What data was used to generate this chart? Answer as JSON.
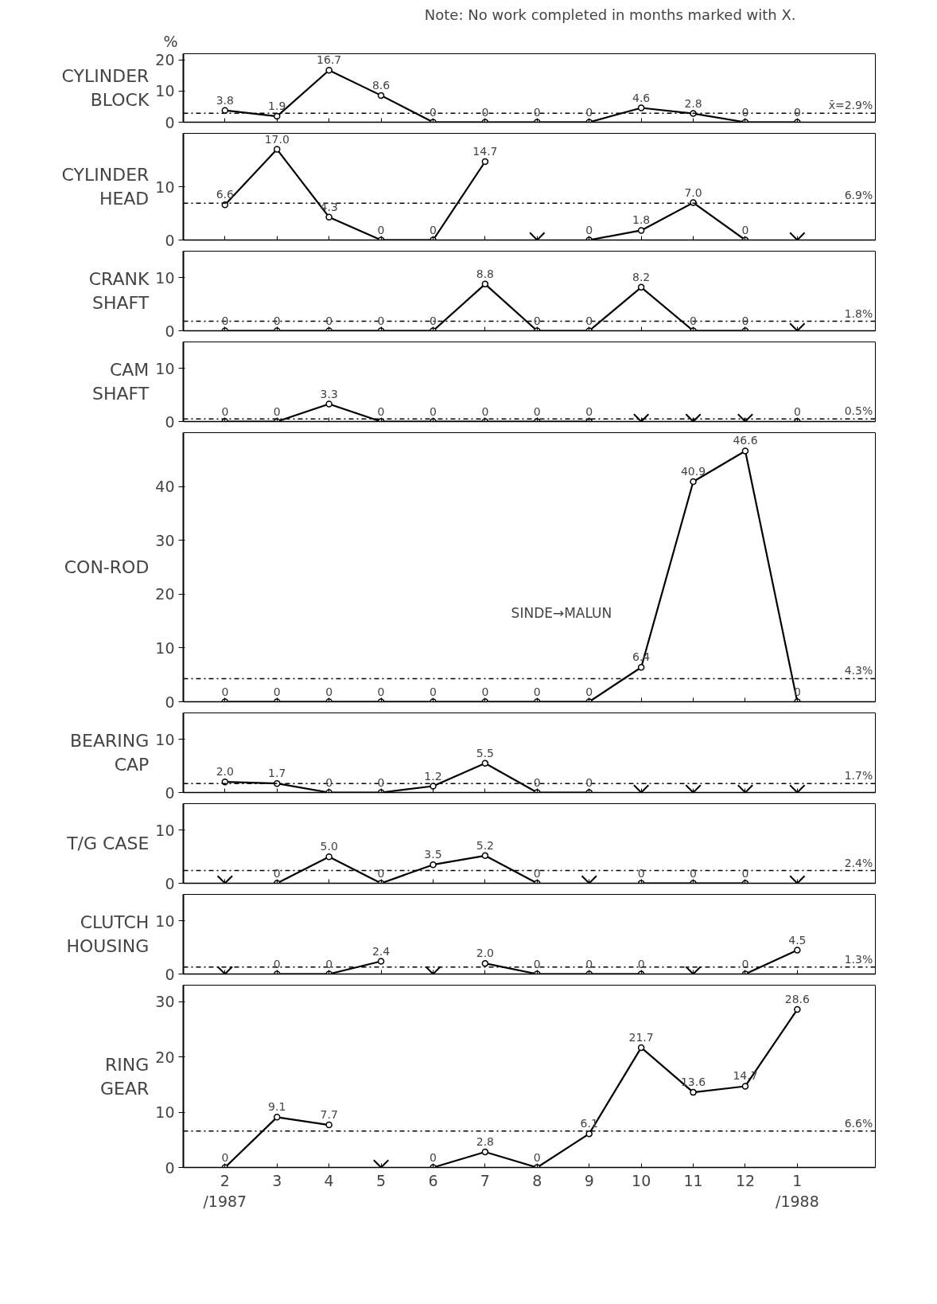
{
  "chart_data": [
    {
      "type": "line",
      "ylabel": "CYLINDER BLOCK",
      "categories": [
        "2",
        "3",
        "4",
        "5",
        "6",
        "7",
        "8",
        "9",
        "10",
        "11",
        "12",
        "1"
      ],
      "ylim": [
        0,
        22
      ],
      "yticks": [
        0,
        10,
        20
      ],
      "tick_labels": "y",
      "annotations": [
        "%",
        "Note: No work completed in months marked with X."
      ],
      "ref_lines": [
        {
          "axis": "y",
          "value": 2.9,
          "label": "x̄=2.9%",
          "line_style": "dashdot"
        }
      ],
      "series": [
        {
          "color": "#000000",
          "marker": "circle",
          "values": [
            3.8,
            1.9,
            16.7,
            8.6,
            0,
            0,
            0,
            0,
            4.6,
            2.8,
            0,
            0
          ],
          "value_labels": [
            "3.8",
            "1.9",
            "16.7",
            "8.6",
            "0",
            "0",
            "0",
            "0",
            "4.6",
            "2.8",
            "0",
            "0"
          ]
        }
      ]
    },
    {
      "type": "line",
      "ylabel": "CYLINDER HEAD",
      "categories": [
        "2",
        "3",
        "4",
        "5",
        "6",
        "7",
        "8",
        "9",
        "10",
        "11",
        "12",
        "1"
      ],
      "ylim": [
        0,
        20
      ],
      "yticks": [
        0,
        10
      ],
      "tick_labels": "y",
      "ref_lines": [
        {
          "axis": "y",
          "value": 6.9,
          "label": "6.9%",
          "line_style": "dashdot"
        }
      ],
      "series": [
        {
          "color": "#000000",
          "marker": "circle",
          "values": [
            6.6,
            17.0,
            4.3,
            0,
            0,
            14.7,
            null,
            0,
            1.8,
            7.0,
            0,
            null
          ],
          "value_labels": [
            "6.6",
            "17.0",
            "4.3",
            "0",
            "0",
            "14.7",
            null,
            "0",
            "1.8",
            "7.0",
            "0",
            null
          ]
        },
        {
          "type": "scatter",
          "color": "#000000",
          "marker": "cross",
          "values": [
            null,
            null,
            null,
            null,
            null,
            null,
            0,
            null,
            null,
            null,
            null,
            0
          ]
        }
      ]
    },
    {
      "type": "line",
      "ylabel": "CRANK SHAFT",
      "categories": [
        "2",
        "3",
        "4",
        "5",
        "6",
        "7",
        "8",
        "9",
        "10",
        "11",
        "12",
        "1"
      ],
      "ylim": [
        0,
        15
      ],
      "yticks": [
        0,
        10
      ],
      "tick_labels": "y",
      "ref_lines": [
        {
          "axis": "y",
          "value": 1.8,
          "label": "1.8%",
          "line_style": "dashdot"
        }
      ],
      "series": [
        {
          "color": "#000000",
          "marker": "circle",
          "values": [
            0,
            0,
            0,
            0,
            0,
            8.8,
            0,
            0,
            8.2,
            0,
            0,
            null
          ],
          "value_labels": [
            "0",
            "0",
            "0",
            "0",
            "0",
            "8.8",
            "0",
            "0",
            "8.2",
            "0",
            "0",
            null
          ]
        },
        {
          "type": "scatter",
          "color": "#000000",
          "marker": "cross",
          "values": [
            null,
            null,
            null,
            null,
            null,
            null,
            null,
            null,
            null,
            null,
            null,
            0
          ]
        }
      ]
    },
    {
      "type": "line",
      "ylabel": "CAM SHAFT",
      "categories": [
        "2",
        "3",
        "4",
        "5",
        "6",
        "7",
        "8",
        "9",
        "10",
        "11",
        "12",
        "1"
      ],
      "ylim": [
        0,
        15
      ],
      "yticks": [
        0,
        10
      ],
      "tick_labels": "y",
      "ref_lines": [
        {
          "axis": "y",
          "value": 0.5,
          "label": "0.5%",
          "line_style": "dashdot"
        }
      ],
      "series": [
        {
          "color": "#000000",
          "marker": "circle",
          "values": [
            0,
            0,
            3.3,
            0,
            0,
            0,
            0,
            0,
            null,
            null,
            null,
            0
          ],
          "value_labels": [
            "0",
            "0",
            "3.3",
            "0",
            "0",
            "0",
            "0",
            "0",
            null,
            null,
            null,
            "0"
          ]
        },
        {
          "type": "scatter",
          "color": "#000000",
          "marker": "cross",
          "values": [
            null,
            null,
            null,
            null,
            null,
            null,
            null,
            null,
            0,
            0,
            0,
            null
          ]
        }
      ]
    },
    {
      "type": "line",
      "ylabel": "CON-ROD",
      "categories": [
        "2",
        "3",
        "4",
        "5",
        "6",
        "7",
        "8",
        "9",
        "10",
        "11",
        "12",
        "1"
      ],
      "ylim": [
        0,
        50
      ],
      "yticks": [
        0,
        10,
        20,
        30,
        40
      ],
      "tick_labels": "y",
      "annotations": [
        "SINDE→MALUN"
      ],
      "ref_lines": [
        {
          "axis": "y",
          "value": 4.3,
          "label": "4.3%",
          "line_style": "dashdot"
        }
      ],
      "series": [
        {
          "color": "#000000",
          "marker": "circle",
          "values": [
            0,
            0,
            0,
            0,
            0,
            0,
            0,
            0,
            6.4,
            40.9,
            46.6,
            0
          ],
          "value_labels": [
            "0",
            "0",
            "0",
            "0",
            "0",
            "0",
            "0",
            "0",
            "6.4",
            "40.9",
            "46.6",
            "0"
          ]
        }
      ]
    },
    {
      "type": "line",
      "ylabel": "BEARING CAP",
      "categories": [
        "2",
        "3",
        "4",
        "5",
        "6",
        "7",
        "8",
        "9",
        "10",
        "11",
        "12",
        "1"
      ],
      "ylim": [
        0,
        15
      ],
      "yticks": [
        0,
        10
      ],
      "tick_labels": "y",
      "ref_lines": [
        {
          "axis": "y",
          "value": 1.7,
          "label": "1.7%",
          "line_style": "dashdot"
        }
      ],
      "series": [
        {
          "color": "#000000",
          "marker": "circle",
          "values": [
            2.0,
            1.7,
            0,
            0,
            1.2,
            5.5,
            0,
            0,
            null,
            null,
            null,
            null
          ],
          "value_labels": [
            "2.0",
            "1.7",
            "0",
            "0",
            "1.2",
            "5.5",
            "0",
            "0",
            null,
            null,
            null,
            null
          ]
        },
        {
          "type": "scatter",
          "color": "#000000",
          "marker": "cross",
          "values": [
            null,
            null,
            null,
            null,
            null,
            null,
            null,
            null,
            0,
            0,
            0,
            0
          ]
        }
      ]
    },
    {
      "type": "line",
      "ylabel": "T/G CASE",
      "categories": [
        "2",
        "3",
        "4",
        "5",
        "6",
        "7",
        "8",
        "9",
        "10",
        "11",
        "12",
        "1"
      ],
      "ylim": [
        0,
        15
      ],
      "yticks": [
        0,
        10
      ],
      "tick_labels": "y",
      "ref_lines": [
        {
          "axis": "y",
          "value": 2.4,
          "label": "2.4%",
          "line_style": "dashdot"
        }
      ],
      "series": [
        {
          "color": "#000000",
          "marker": "circle",
          "values": [
            null,
            0,
            5.0,
            0,
            3.5,
            5.2,
            0,
            null,
            0,
            0,
            0,
            null
          ],
          "value_labels": [
            null,
            "0",
            "5.0",
            "0",
            "3.5",
            "5.2",
            "0",
            null,
            "0",
            "0",
            "0",
            null
          ]
        },
        {
          "type": "scatter",
          "color": "#000000",
          "marker": "cross",
          "values": [
            0,
            null,
            null,
            null,
            null,
            null,
            null,
            0,
            null,
            null,
            null,
            0
          ]
        }
      ]
    },
    {
      "type": "line",
      "ylabel": "CLUTCH HOUSING",
      "categories": [
        "2",
        "3",
        "4",
        "5",
        "6",
        "7",
        "8",
        "9",
        "10",
        "11",
        "12",
        "1"
      ],
      "ylim": [
        0,
        15
      ],
      "yticks": [
        0,
        10
      ],
      "tick_labels": "y",
      "ref_lines": [
        {
          "axis": "y",
          "value": 1.3,
          "label": "1.3%",
          "line_style": "dashdot"
        }
      ],
      "series": [
        {
          "color": "#000000",
          "marker": "circle",
          "values": [
            null,
            0,
            0,
            2.4,
            null,
            2.0,
            0,
            0,
            0,
            null,
            0,
            4.5
          ],
          "value_labels": [
            null,
            "0",
            "0",
            "2.4",
            null,
            "2.0",
            "0",
            "0",
            "0",
            null,
            "0",
            "4.5"
          ]
        },
        {
          "type": "scatter",
          "color": "#000000",
          "marker": "cross",
          "values": [
            0,
            null,
            null,
            null,
            0,
            null,
            null,
            null,
            null,
            0,
            null,
            null
          ]
        }
      ]
    },
    {
      "type": "line",
      "ylabel": "RING GEAR",
      "categories": [
        "2\n/1987",
        "3",
        "4",
        "5",
        "6",
        "7",
        "8",
        "9",
        "10",
        "11",
        "12",
        "1\n/1988"
      ],
      "ylim": [
        0,
        33
      ],
      "yticks": [
        0,
        10,
        20,
        30
      ],
      "ref_lines": [
        {
          "axis": "y",
          "value": 6.6,
          "label": "6.6%",
          "line_style": "dashdot"
        }
      ],
      "series": [
        {
          "color": "#000000",
          "marker": "circle",
          "values": [
            0,
            9.1,
            7.7,
            null,
            0,
            2.8,
            0,
            6.1,
            21.7,
            13.6,
            14.7,
            28.6
          ],
          "value_labels": [
            "0",
            "9.1",
            "7.7",
            null,
            "0",
            "2.8",
            "0",
            "6.1",
            "21.7",
            "13.6",
            "14.7",
            "28.6"
          ]
        },
        {
          "type": "scatter",
          "color": "#000000",
          "marker": "cross",
          "values": [
            null,
            null,
            null,
            0,
            null,
            null,
            null,
            null,
            null,
            null,
            null,
            null
          ]
        }
      ]
    }
  ]
}
